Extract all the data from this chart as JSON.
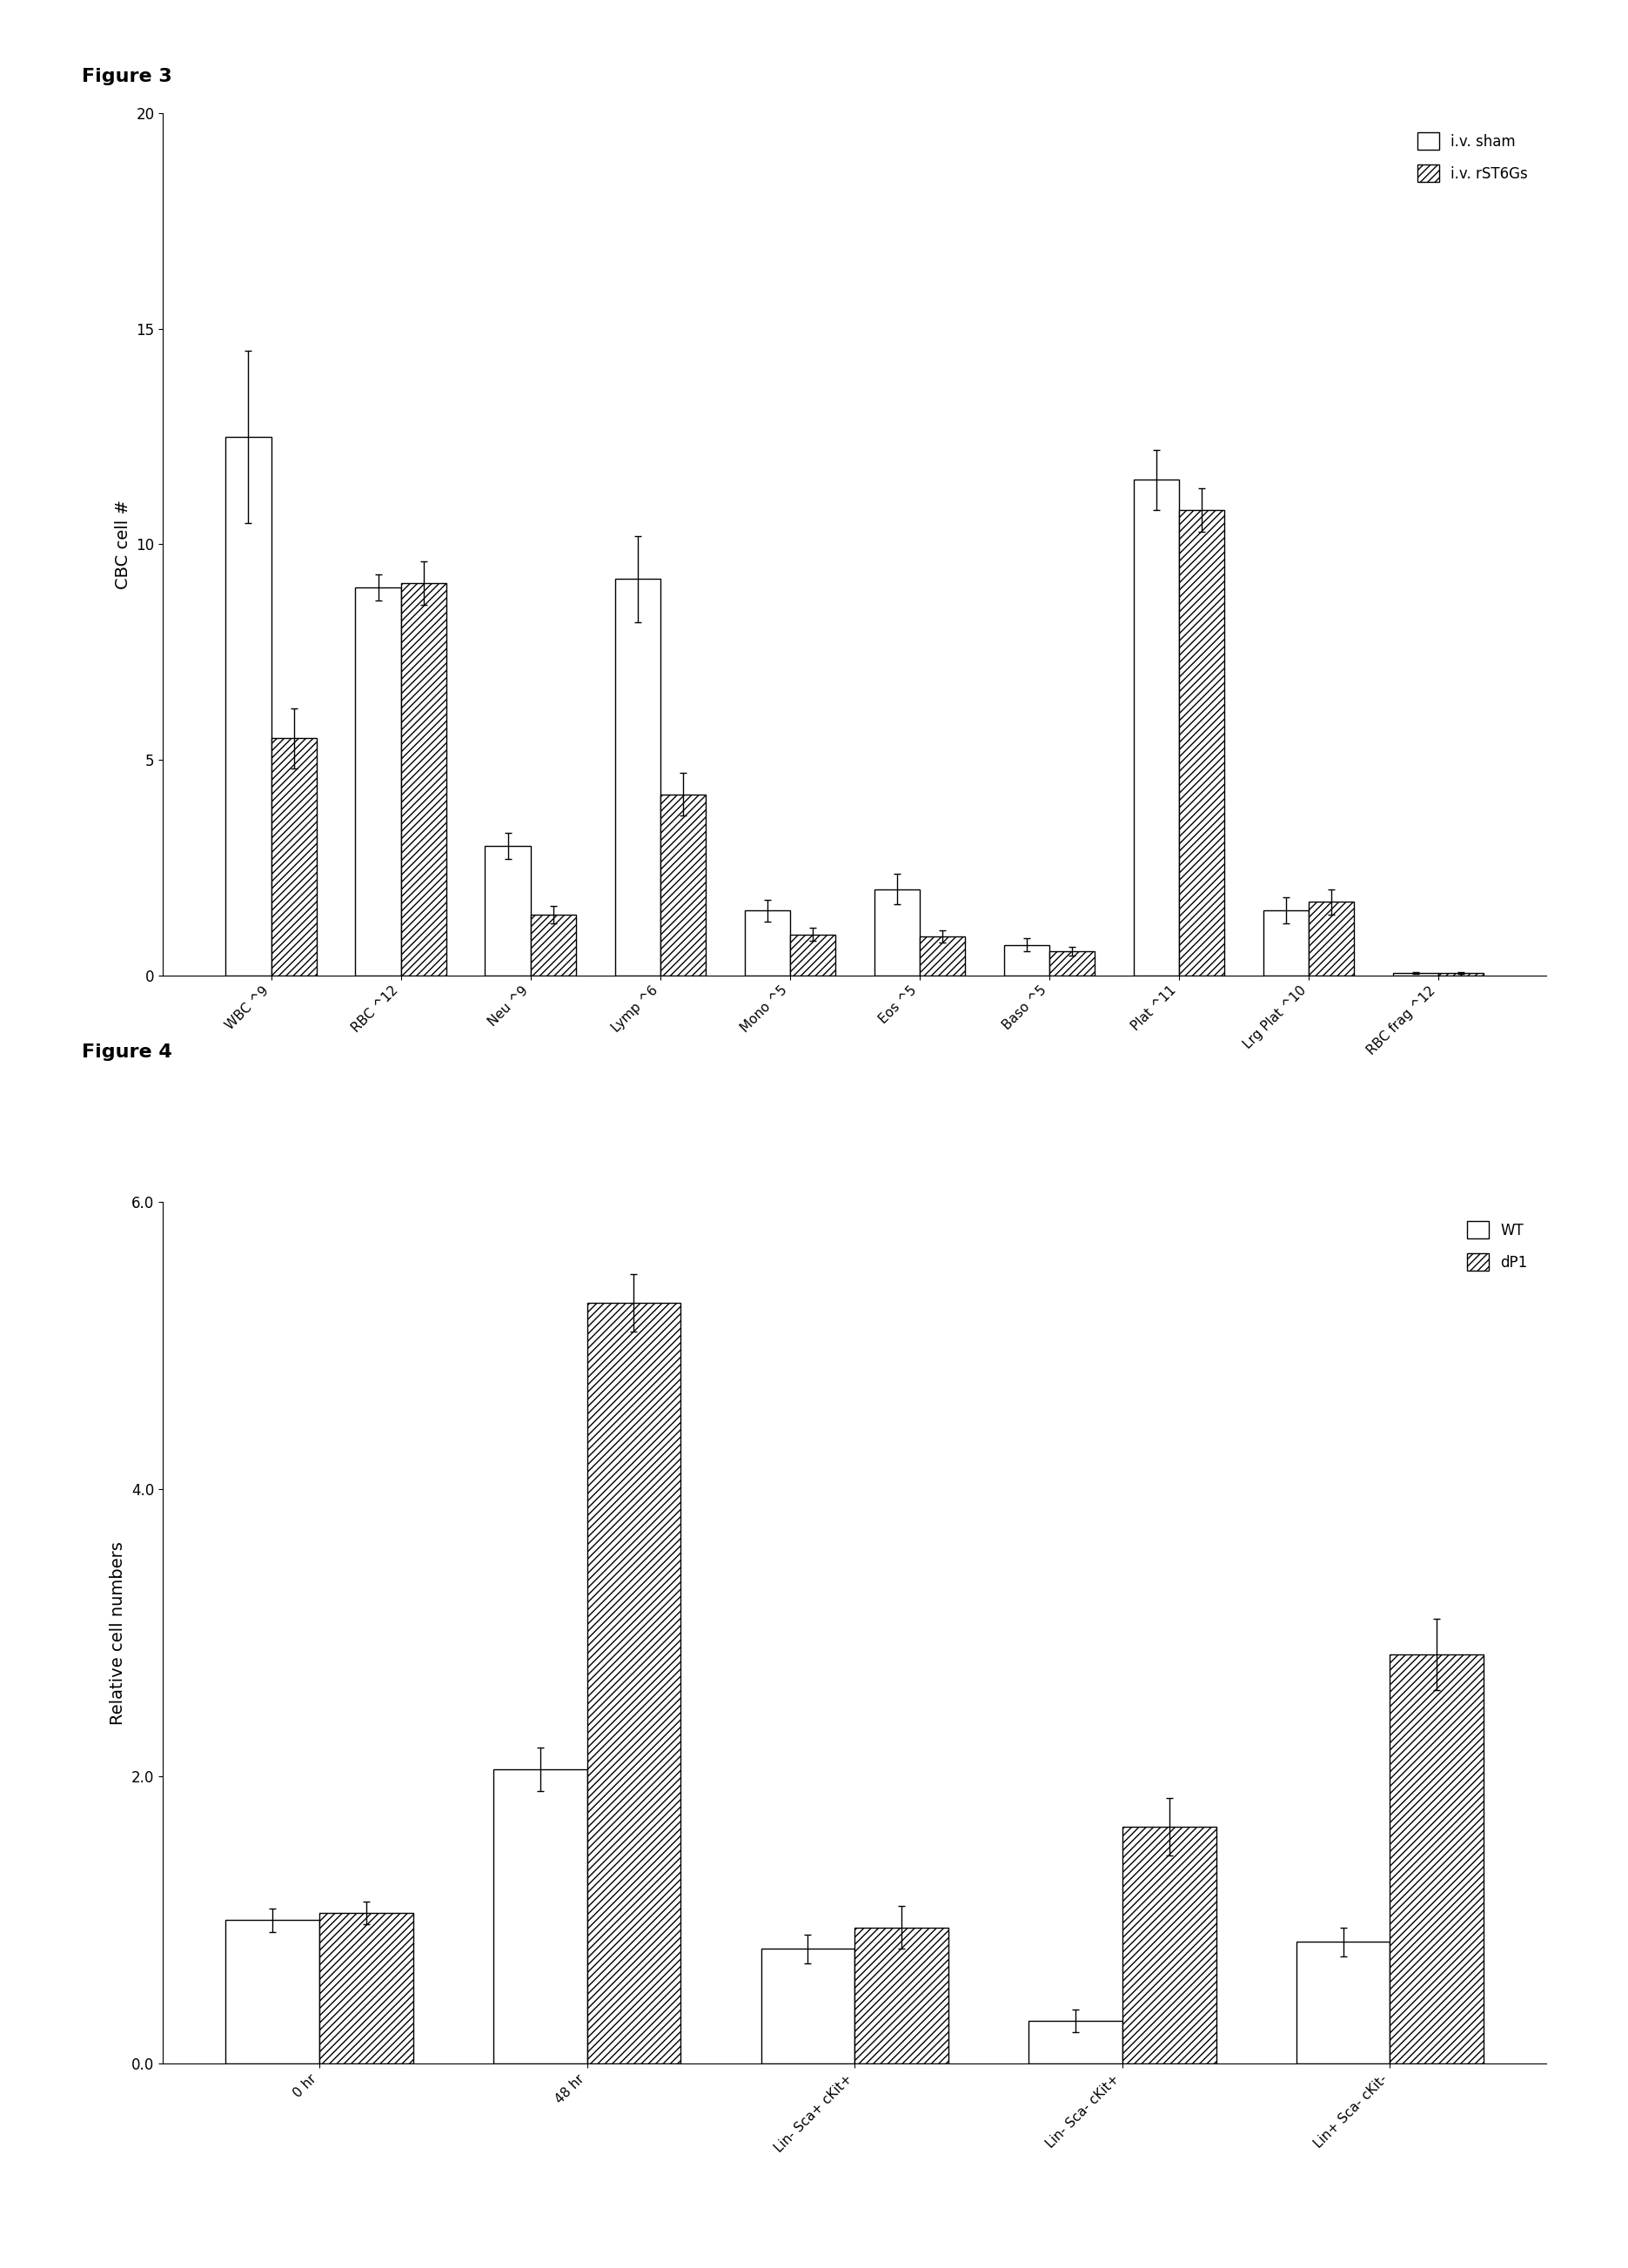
{
  "fig3": {
    "title": "Figure 3",
    "ylabel": "CBC cell #",
    "ylim": [
      0,
      20
    ],
    "yticks": [
      0,
      5,
      10,
      15,
      20
    ],
    "categories": [
      "WBC ^9",
      "RBC ^12",
      "Neu ^9",
      "Lymp ^6",
      "Mono ^5",
      "Eos ^5",
      "Baso ^5",
      "Plat ^11",
      "Lrg Plat ^10",
      "RBC frag ^12"
    ],
    "sham_values": [
      12.5,
      9.0,
      3.0,
      9.2,
      1.5,
      2.0,
      0.7,
      11.5,
      1.5,
      0.05
    ],
    "rst6gs_values": [
      5.5,
      9.1,
      1.4,
      4.2,
      0.95,
      0.9,
      0.55,
      10.8,
      1.7,
      0.05
    ],
    "sham_errors": [
      2.0,
      0.3,
      0.3,
      1.0,
      0.25,
      0.35,
      0.15,
      0.7,
      0.3,
      0.02
    ],
    "rst6gs_errors": [
      0.7,
      0.5,
      0.2,
      0.5,
      0.15,
      0.15,
      0.1,
      0.5,
      0.3,
      0.02
    ],
    "legend_labels": [
      "i.v. sham",
      "i.v. rST6Gs"
    ],
    "bar_width": 0.35
  },
  "fig4": {
    "title": "Figure 4",
    "ylabel": "Relative cell numbers",
    "ylim": [
      0,
      6.0
    ],
    "yticks": [
      0.0,
      2.0,
      4.0,
      6.0
    ],
    "categories": [
      "0 hr",
      "48 hr",
      "Lin- Sca+ cKit+",
      "Lin- Sca- cKit+",
      "Lin+ Sca- cKit-"
    ],
    "wt_values": [
      1.0,
      2.05,
      0.8,
      0.3,
      0.85
    ],
    "dp1_values": [
      1.05,
      5.3,
      0.95,
      1.65,
      2.85
    ],
    "wt_errors": [
      0.08,
      0.15,
      0.1,
      0.08,
      0.1
    ],
    "dp1_errors": [
      0.08,
      0.2,
      0.15,
      0.2,
      0.25
    ],
    "legend_labels": [
      "WT",
      "dP1"
    ],
    "bar_width": 0.35
  },
  "background_color": "#ffffff",
  "bar_color_open": "#ffffff",
  "bar_color_hatched": "#ffffff",
  "hatch_pattern": "////",
  "edge_color": "#000000"
}
